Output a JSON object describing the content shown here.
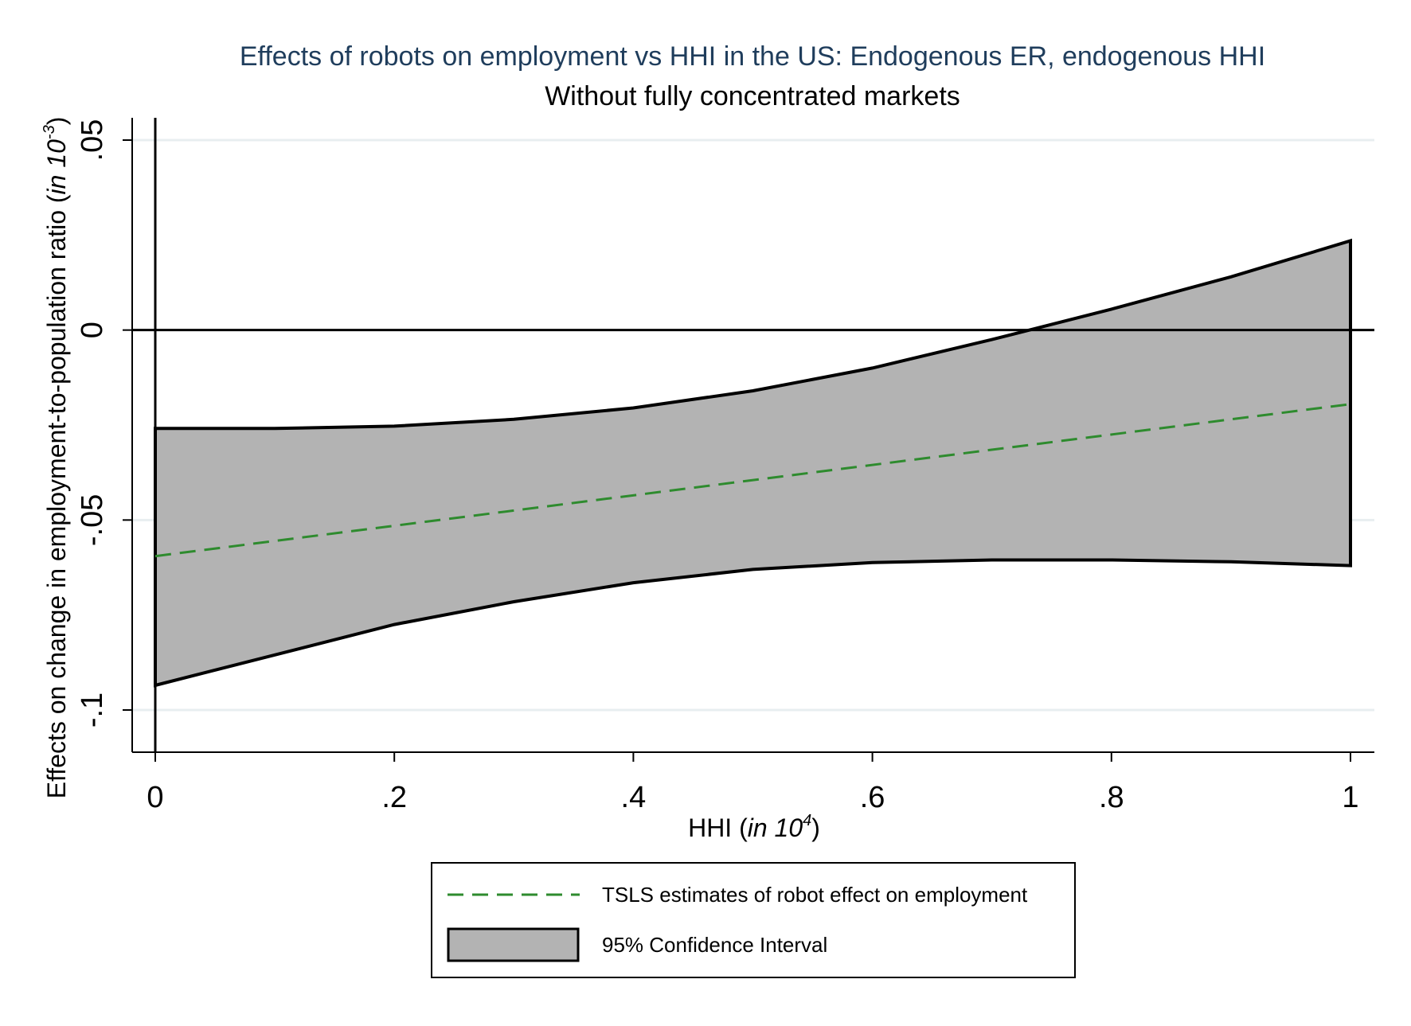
{
  "chart_data": {
    "type": "area",
    "title": "Effects of robots on employment vs HHI in the US: Endogenous ER, endogenous HHI",
    "subtitle": "Without fully concentrated markets",
    "xlabel": "HHI (in 10^4)",
    "xlabel_parts": {
      "plain": "HHI (",
      "italic": "in 10",
      "sup": "4",
      "close": ")"
    },
    "ylabel": "Effects on change in employment-to-population ratio (in 10^-3)",
    "ylabel_parts": {
      "plain": "Effects on change in employment-to-population ratio (",
      "italic": "in 10",
      "sup": "-3",
      "close": ")"
    },
    "xlim": [
      0,
      1
    ],
    "ylim": [
      -0.1,
      0.05
    ],
    "xticks": [
      0,
      0.2,
      0.4,
      0.6,
      0.8,
      1
    ],
    "xtick_labels": [
      "0",
      ".2",
      ".4",
      ".6",
      ".8",
      "1"
    ],
    "yticks": [
      -0.1,
      -0.05,
      0,
      0.05
    ],
    "ytick_labels": [
      "-.1",
      "-.05",
      "0",
      ".05"
    ],
    "grid": true,
    "legend_position": "bottom",
    "series": [
      {
        "name": "TSLS estimates of robot effect on employment",
        "type": "line",
        "style": "dashed",
        "color": "#2e8b2e",
        "x": [
          0,
          1
        ],
        "y": [
          -0.0595,
          -0.0195
        ]
      },
      {
        "name": "95% Confidence Interval",
        "type": "band",
        "color": "#b3b3b3",
        "x": [
          0,
          0.1,
          0.2,
          0.3,
          0.4,
          0.5,
          0.6,
          0.7,
          0.8,
          0.9,
          1
        ],
        "upper": [
          -0.0259,
          -0.0259,
          -0.0253,
          -0.0235,
          -0.0205,
          -0.016,
          -0.01,
          -0.0025,
          0.0055,
          0.014,
          0.0235
        ],
        "lower": [
          -0.0935,
          -0.0855,
          -0.0775,
          -0.0715,
          -0.0665,
          -0.063,
          -0.0612,
          -0.0605,
          -0.0605,
          -0.061,
          -0.062
        ]
      }
    ],
    "reference_lines": {
      "y": 0,
      "x": 0
    }
  }
}
